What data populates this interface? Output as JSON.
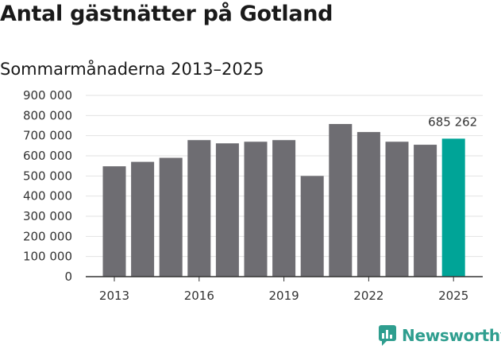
{
  "chart_data": {
    "type": "bar",
    "title": "Antal gästnätter på Gotland",
    "subtitle": "Sommarmånaderna 2013–2025",
    "categories": [
      2013,
      2014,
      2015,
      2016,
      2017,
      2018,
      2019,
      2020,
      2021,
      2022,
      2023,
      2024,
      2025
    ],
    "x_tick_labels": [
      "2013",
      "2016",
      "2019",
      "2022",
      "2025"
    ],
    "values": [
      548000,
      570000,
      590000,
      678000,
      662000,
      670000,
      678000,
      500000,
      758000,
      718000,
      670000,
      655000,
      685262
    ],
    "y_tick_labels": [
      "0",
      "100 000",
      "200 000",
      "300 000",
      "400 000",
      "500 000",
      "600 000",
      "700 000",
      "800 000",
      "900 000"
    ],
    "ylim": [
      0,
      900000
    ],
    "grid": true,
    "highlight_index": 12,
    "data_labels": [
      {
        "index": 12,
        "text": "685 262"
      }
    ],
    "colors": {
      "bar": "#6e6d72",
      "highlight": "#00a497",
      "grid": "#e2e2e2",
      "axis": "#333333"
    }
  },
  "brand": {
    "name": "Newsworthy",
    "icon": "newsworthy-logo-icon",
    "color": "#2f9e8f"
  }
}
